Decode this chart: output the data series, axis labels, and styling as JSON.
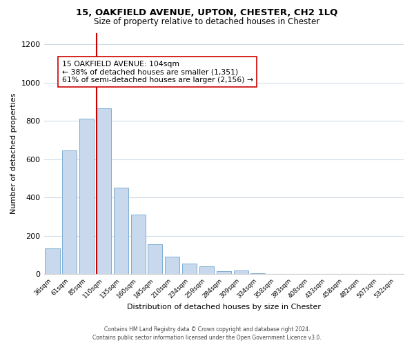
{
  "title": "15, OAKFIELD AVENUE, UPTON, CHESTER, CH2 1LQ",
  "subtitle": "Size of property relative to detached houses in Chester",
  "xlabel": "Distribution of detached houses by size in Chester",
  "ylabel": "Number of detached properties",
  "bar_labels": [
    "36sqm",
    "61sqm",
    "85sqm",
    "110sqm",
    "135sqm",
    "160sqm",
    "185sqm",
    "210sqm",
    "234sqm",
    "259sqm",
    "284sqm",
    "309sqm",
    "334sqm",
    "358sqm",
    "383sqm",
    "408sqm",
    "433sqm",
    "458sqm",
    "482sqm",
    "507sqm",
    "532sqm"
  ],
  "bar_values": [
    135,
    645,
    810,
    865,
    450,
    310,
    155,
    90,
    55,
    43,
    15,
    20,
    5,
    3,
    2,
    1,
    0,
    1,
    0,
    0,
    2
  ],
  "bar_color": "#c9d9ed",
  "bar_edge_color": "#7bafd4",
  "property_line_color": "#cc0000",
  "annotation_text": "15 OAKFIELD AVENUE: 104sqm\n← 38% of detached houses are smaller (1,351)\n61% of semi-detached houses are larger (2,156) →",
  "annotation_box_color": "#ffffff",
  "annotation_box_edge_color": "#cc0000",
  "ylim": [
    0,
    1260
  ],
  "yticks": [
    0,
    200,
    400,
    600,
    800,
    1000,
    1200
  ],
  "footer_line1": "Contains HM Land Registry data © Crown copyright and database right 2024.",
  "footer_line2": "Contains public sector information licensed under the Open Government Licence v3.0.",
  "background_color": "#ffffff",
  "grid_color": "#d0dce8",
  "title_fontsize": 9.5,
  "subtitle_fontsize": 8.5
}
